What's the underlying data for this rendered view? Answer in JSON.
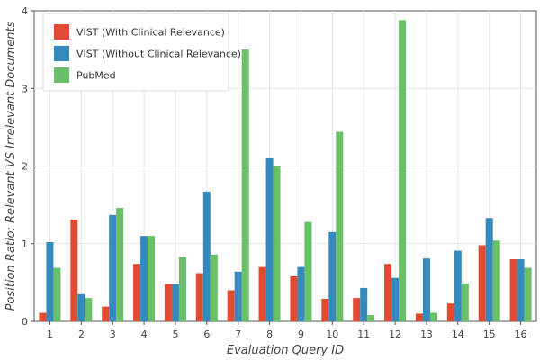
{
  "chart_data": {
    "type": "bar",
    "xlabel": "Evaluation Query ID",
    "ylabel": "Position Ratio: Relevant VS Irrelevant Documents",
    "ylim": [
      0,
      4
    ],
    "yticks": [
      "0",
      "1",
      "2",
      "3",
      "4"
    ],
    "categories": [
      "1",
      "2",
      "3",
      "4",
      "5",
      "6",
      "7",
      "8",
      "9",
      "10",
      "11",
      "12",
      "13",
      "14",
      "15",
      "16"
    ],
    "grid": true,
    "legend_position": "top-left",
    "series": [
      {
        "name": "VIST (With Clinical Relevance)",
        "color": "#e24a33",
        "values": [
          0.11,
          1.31,
          0.19,
          0.74,
          0.48,
          0.62,
          0.4,
          0.7,
          0.58,
          0.29,
          0.3,
          0.74,
          0.1,
          0.23,
          0.98,
          0.8
        ]
      },
      {
        "name": "VIST (Without Clinical Relevance)",
        "color": "#348abd",
        "values": [
          1.02,
          0.35,
          1.37,
          1.1,
          0.48,
          1.67,
          0.64,
          2.1,
          0.7,
          1.15,
          0.43,
          0.56,
          0.81,
          0.91,
          1.33,
          0.8
        ]
      },
      {
        "name": "PubMed",
        "color": "#6abf69",
        "values": [
          0.69,
          0.3,
          1.46,
          1.1,
          0.83,
          0.86,
          3.5,
          2.0,
          1.28,
          2.44,
          0.08,
          3.88,
          0.11,
          0.49,
          1.04,
          0.69
        ]
      }
    ]
  }
}
